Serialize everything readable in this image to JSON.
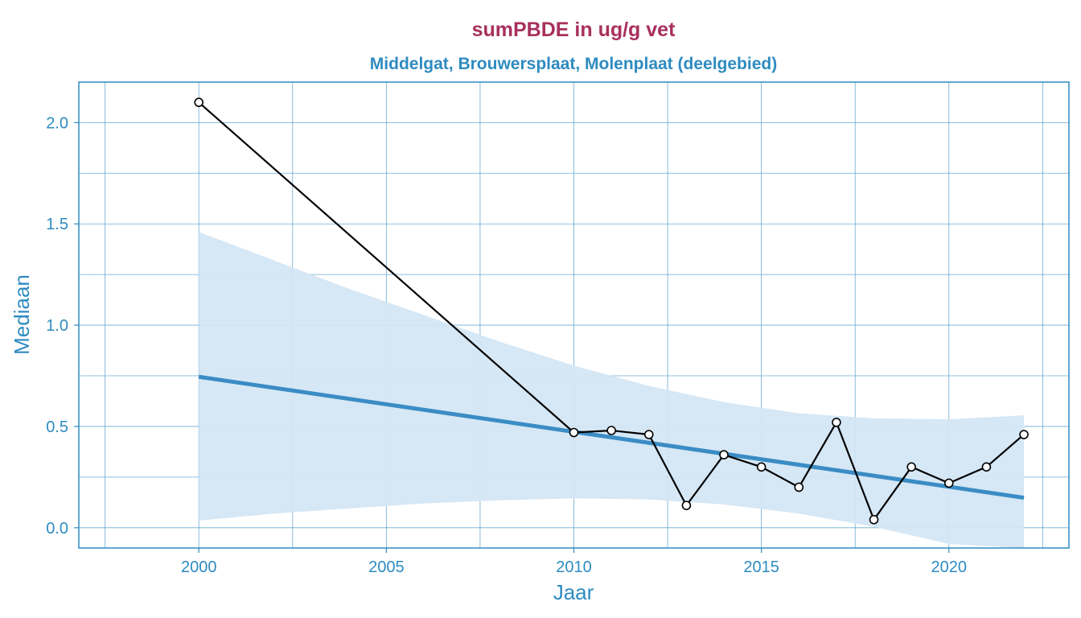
{
  "colors": {
    "title": "#A8305C",
    "subtitle": "#2E8BC0",
    "axis": "#2E8BC0",
    "grid": "#5BA3D0",
    "trend": "#3A8CC4",
    "band": "#D4E6F4",
    "series": "#000000",
    "point_fill": "#ffffff"
  },
  "chart_data": {
    "type": "line",
    "title": "sumPBDE in ug/g vet",
    "subtitle": "Middelgat, Brouwersplaat, Molenplaat (deelgebied)",
    "xlabel": "Jaar",
    "ylabel": "Mediaan",
    "xlim": [
      1996.8,
      2023.2
    ],
    "ylim": [
      -0.1,
      2.2
    ],
    "x_ticks": [
      2000,
      2005,
      2010,
      2015,
      2020
    ],
    "y_ticks": [
      0.0,
      0.5,
      1.0,
      1.5,
      2.0
    ],
    "x_tick_labels": [
      "2000",
      "2005",
      "2010",
      "2015",
      "2020"
    ],
    "y_tick_labels": [
      "0.0",
      "0.5",
      "1.0",
      "1.5",
      "2.0"
    ],
    "grid": true,
    "series": [
      {
        "x": [
          2000,
          2010,
          2011,
          2012,
          2013,
          2014,
          2015,
          2016,
          2017,
          2018,
          2019,
          2020,
          2021,
          2022
        ],
        "y": [
          2.1,
          0.47,
          0.48,
          0.46,
          0.11,
          0.36,
          0.3,
          0.2,
          0.52,
          0.04,
          0.3,
          0.22,
          0.3,
          0.46
        ]
      }
    ],
    "trend": {
      "x": [
        2000,
        2022
      ],
      "y": [
        0.745,
        0.148
      ]
    },
    "confidence_band": {
      "x": [
        2000,
        2002,
        2004,
        2006,
        2008,
        2010,
        2012,
        2014,
        2016,
        2018,
        2020,
        2022
      ],
      "upper": [
        1.46,
        1.32,
        1.18,
        1.05,
        0.92,
        0.8,
        0.7,
        0.62,
        0.565,
        0.54,
        0.535,
        0.555
      ],
      "lower": [
        0.035,
        0.07,
        0.095,
        0.12,
        0.135,
        0.145,
        0.14,
        0.115,
        0.07,
        0.005,
        -0.08,
        -0.16
      ]
    }
  }
}
